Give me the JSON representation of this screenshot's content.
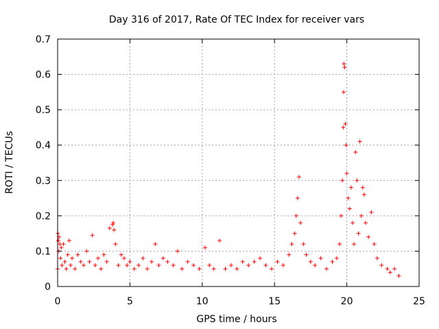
{
  "chart_data": {
    "type": "scatter",
    "title": "Day 316 of 2017, Rate Of TEC Index for receiver vars",
    "xlabel": "GPS time / hours",
    "ylabel": "ROTI / TECUs",
    "xlim": [
      0,
      25
    ],
    "ylim": [
      0,
      0.7
    ],
    "xticks": [
      0,
      5,
      10,
      15,
      20,
      25
    ],
    "yticks": [
      0,
      0.1,
      0.2,
      0.3,
      0.4,
      0.5,
      0.6,
      0.7
    ],
    "xtick_labels": [
      "0",
      "5",
      "10",
      "15",
      "20",
      "25"
    ],
    "ytick_labels": [
      "0",
      "0.1",
      "0.2",
      "0.3",
      "0.4",
      "0.5",
      "0.6",
      "0.7"
    ],
    "grid": true,
    "marker": "+",
    "color": "#ff0000",
    "series": [
      {
        "name": "ROTI",
        "points": [
          [
            0.0,
            0.05
          ],
          [
            0.02,
            0.15
          ],
          [
            0.05,
            0.13
          ],
          [
            0.08,
            0.1
          ],
          [
            0.1,
            0.14
          ],
          [
            0.15,
            0.12
          ],
          [
            0.2,
            0.08
          ],
          [
            0.25,
            0.11
          ],
          [
            0.3,
            0.06
          ],
          [
            0.4,
            0.12
          ],
          [
            0.5,
            0.07
          ],
          [
            0.6,
            0.05
          ],
          [
            0.7,
            0.09
          ],
          [
            0.8,
            0.13
          ],
          [
            0.9,
            0.06
          ],
          [
            1.0,
            0.08
          ],
          [
            1.2,
            0.05
          ],
          [
            1.4,
            0.09
          ],
          [
            1.6,
            0.07
          ],
          [
            1.8,
            0.06
          ],
          [
            2.0,
            0.1
          ],
          [
            2.2,
            0.07
          ],
          [
            2.4,
            0.145
          ],
          [
            2.6,
            0.06
          ],
          [
            2.8,
            0.08
          ],
          [
            3.0,
            0.05
          ],
          [
            3.2,
            0.09
          ],
          [
            3.4,
            0.07
          ],
          [
            3.6,
            0.165
          ],
          [
            3.8,
            0.175
          ],
          [
            3.85,
            0.18
          ],
          [
            3.9,
            0.16
          ],
          [
            4.0,
            0.12
          ],
          [
            4.2,
            0.06
          ],
          [
            4.4,
            0.09
          ],
          [
            4.6,
            0.08
          ],
          [
            4.8,
            0.06
          ],
          [
            5.0,
            0.07
          ],
          [
            5.3,
            0.05
          ],
          [
            5.6,
            0.06
          ],
          [
            5.9,
            0.08
          ],
          [
            6.2,
            0.05
          ],
          [
            6.5,
            0.07
          ],
          [
            6.75,
            0.12
          ],
          [
            7.0,
            0.06
          ],
          [
            7.3,
            0.08
          ],
          [
            7.6,
            0.07
          ],
          [
            8.0,
            0.06
          ],
          [
            8.3,
            0.1
          ],
          [
            8.6,
            0.05
          ],
          [
            9.0,
            0.07
          ],
          [
            9.4,
            0.06
          ],
          [
            9.8,
            0.05
          ],
          [
            10.2,
            0.11
          ],
          [
            10.5,
            0.06
          ],
          [
            10.8,
            0.05
          ],
          [
            11.2,
            0.13
          ],
          [
            11.6,
            0.05
          ],
          [
            12.0,
            0.06
          ],
          [
            12.4,
            0.05
          ],
          [
            12.8,
            0.07
          ],
          [
            13.2,
            0.06
          ],
          [
            13.6,
            0.07
          ],
          [
            14.0,
            0.08
          ],
          [
            14.4,
            0.06
          ],
          [
            14.8,
            0.05
          ],
          [
            15.2,
            0.07
          ],
          [
            15.6,
            0.06
          ],
          [
            16.0,
            0.09
          ],
          [
            16.2,
            0.12
          ],
          [
            16.4,
            0.15
          ],
          [
            16.5,
            0.2
          ],
          [
            16.6,
            0.25
          ],
          [
            16.7,
            0.31
          ],
          [
            16.8,
            0.18
          ],
          [
            17.0,
            0.12
          ],
          [
            17.2,
            0.09
          ],
          [
            17.5,
            0.07
          ],
          [
            17.8,
            0.06
          ],
          [
            18.2,
            0.08
          ],
          [
            18.6,
            0.05
          ],
          [
            19.0,
            0.07
          ],
          [
            19.3,
            0.08
          ],
          [
            19.5,
            0.12
          ],
          [
            19.6,
            0.2
          ],
          [
            19.7,
            0.3
          ],
          [
            19.75,
            0.45
          ],
          [
            19.78,
            0.55
          ],
          [
            19.8,
            0.63
          ],
          [
            19.85,
            0.62
          ],
          [
            19.9,
            0.46
          ],
          [
            19.95,
            0.4
          ],
          [
            20.0,
            0.32
          ],
          [
            20.1,
            0.25
          ],
          [
            20.2,
            0.22
          ],
          [
            20.3,
            0.28
          ],
          [
            20.4,
            0.18
          ],
          [
            20.5,
            0.12
          ],
          [
            20.6,
            0.38
          ],
          [
            20.7,
            0.3
          ],
          [
            20.8,
            0.15
          ],
          [
            20.9,
            0.41
          ],
          [
            21.0,
            0.2
          ],
          [
            21.1,
            0.28
          ],
          [
            21.2,
            0.26
          ],
          [
            21.3,
            0.18
          ],
          [
            21.5,
            0.14
          ],
          [
            21.7,
            0.21
          ],
          [
            21.9,
            0.12
          ],
          [
            22.1,
            0.08
          ],
          [
            22.4,
            0.06
          ],
          [
            22.8,
            0.05
          ],
          [
            23.0,
            0.04
          ],
          [
            23.3,
            0.05
          ],
          [
            23.6,
            0.03
          ]
        ]
      }
    ]
  }
}
